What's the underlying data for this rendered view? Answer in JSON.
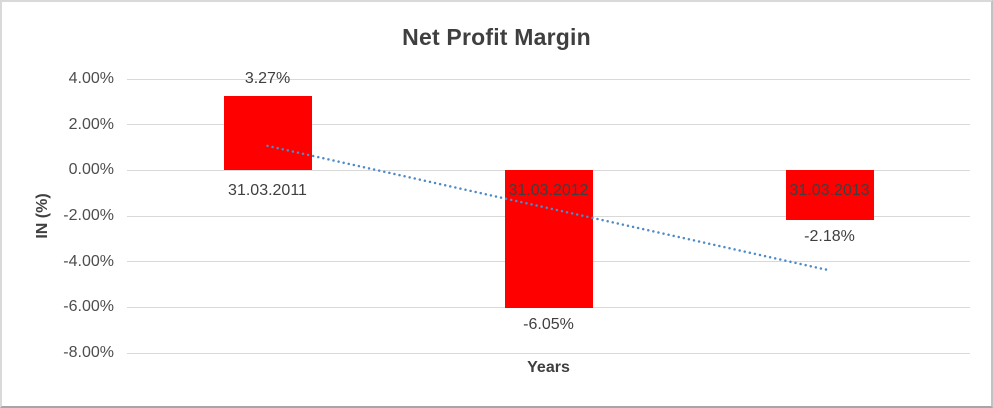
{
  "chart": {
    "title": "Net Profit Margin",
    "xlabel": "Years",
    "ylabel": "IN (%)"
  },
  "chart_data": {
    "type": "bar",
    "title": "Net Profit Margin",
    "categories": [
      "31.03.2011",
      "31.03.2012",
      "31.03.2013"
    ],
    "values": [
      3.27,
      -6.05,
      -2.18
    ],
    "data_labels": [
      "3.27%",
      "-6.05%",
      "-2.18%"
    ],
    "xlabel": "Years",
    "ylabel": "IN (%)",
    "ylim": [
      -8,
      4
    ],
    "y_ticks": [
      {
        "value": 4,
        "label": "4.00%"
      },
      {
        "value": 2,
        "label": "2.00%"
      },
      {
        "value": 0,
        "label": "0.00%"
      },
      {
        "value": -2,
        "label": "-2.00%"
      },
      {
        "value": -4,
        "label": "-4.00%"
      },
      {
        "value": -6,
        "label": "-6.00%"
      },
      {
        "value": -8,
        "label": "-8.00%"
      }
    ],
    "grid": true,
    "legend": "none",
    "colors": {
      "bar": "#FF0000",
      "trendline": "#4E8AC8",
      "gridline": "#D9D9D9",
      "title_text": "#3F3F3F",
      "tick_text": "#4D4D4D"
    },
    "trendline": {
      "type": "linear",
      "style": "dotted",
      "start": {
        "category_index": 0,
        "value": 1.07
      },
      "end": {
        "category_index": 2,
        "value": -4.38
      }
    }
  }
}
